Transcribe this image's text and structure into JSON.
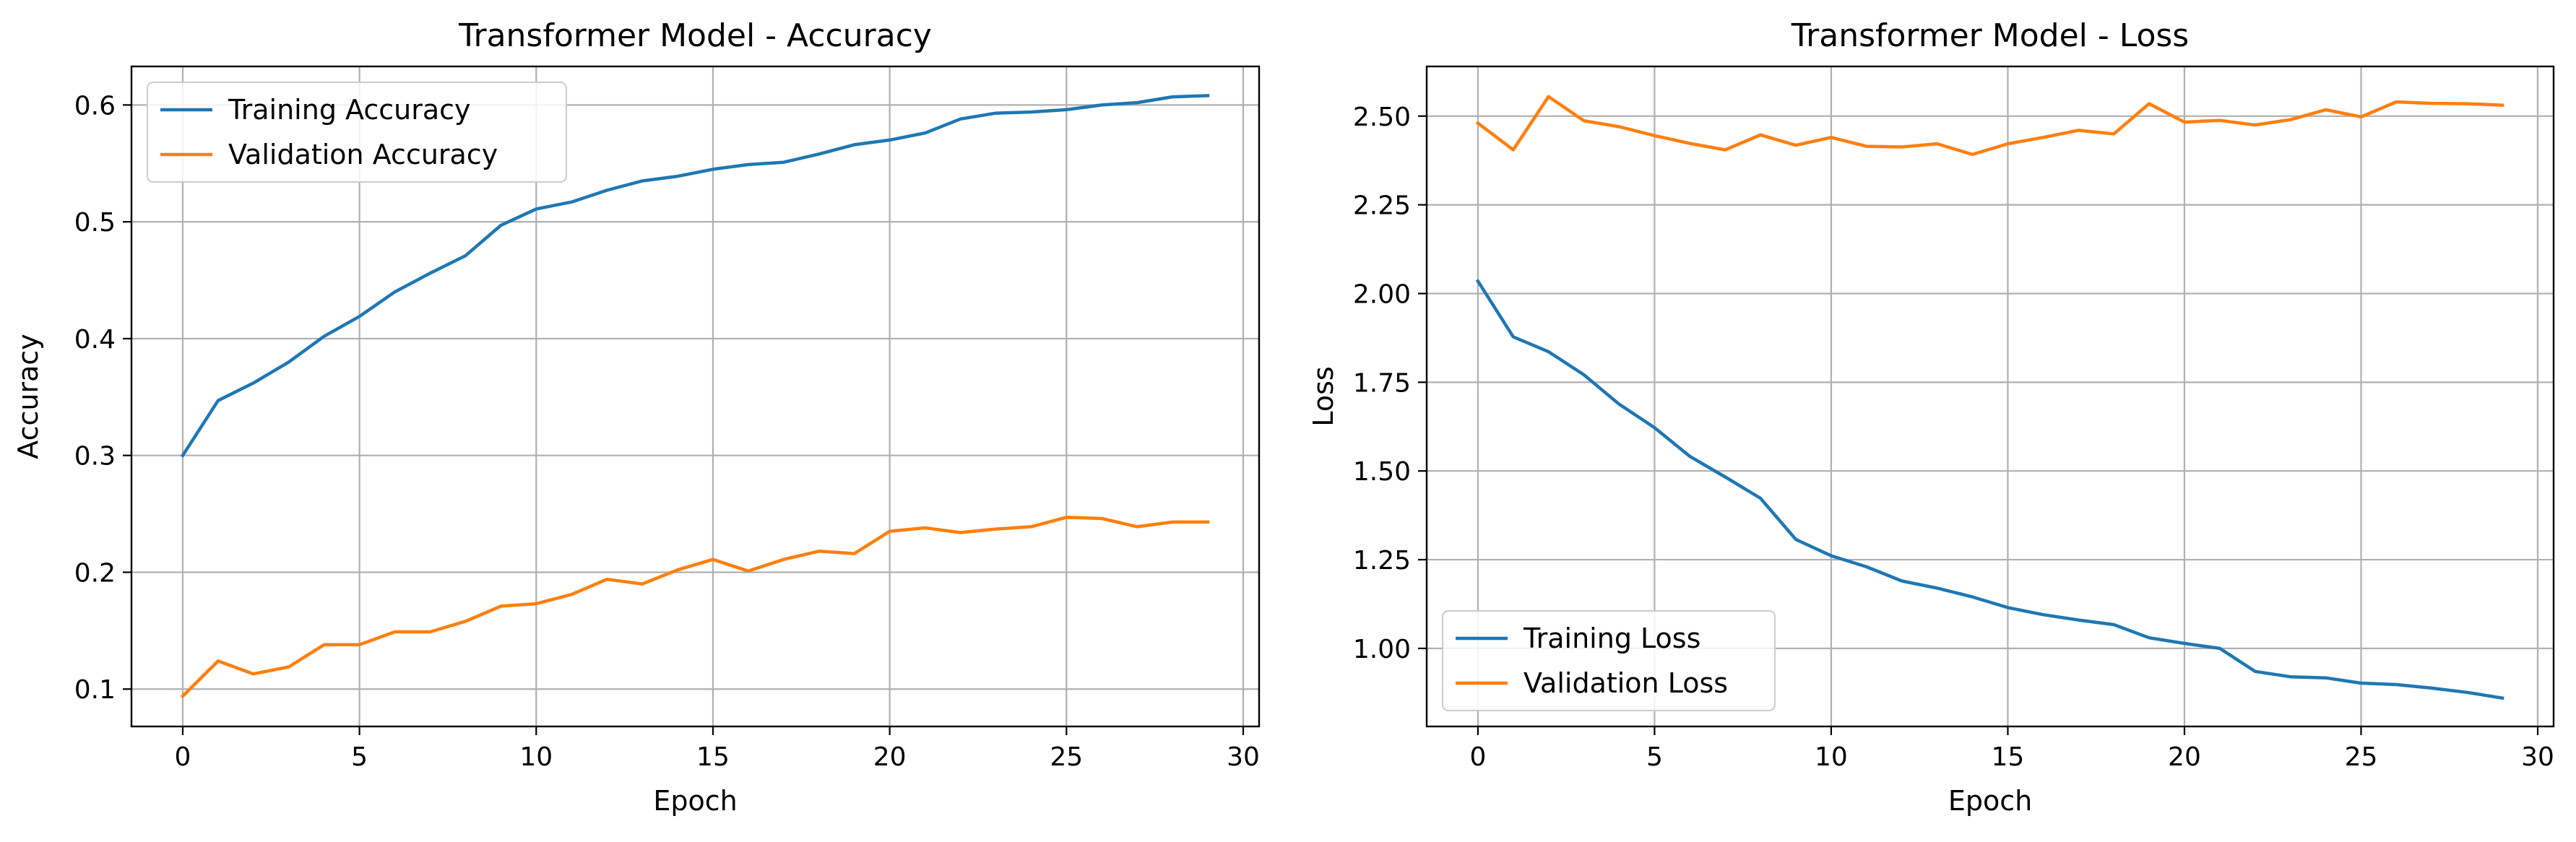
{
  "colors": {
    "training": "#1f77b4",
    "validation": "#ff7f0e",
    "grid": "#b0b0b0",
    "axis": "#000000",
    "legend_border": "#cccccc"
  },
  "chart_data": [
    {
      "type": "line",
      "title": "Transformer Model - Accuracy",
      "xlabel": "Epoch",
      "ylabel": "Accuracy",
      "xlim": [
        -1.45,
        30.45
      ],
      "ylim": [
        0.068,
        0.633
      ],
      "xticks": [
        0,
        5,
        10,
        15,
        20,
        25,
        30
      ],
      "yticks": [
        0.1,
        0.2,
        0.3,
        0.4,
        0.5,
        0.6
      ],
      "ytick_labels": [
        "0.1",
        "0.2",
        "0.3",
        "0.4",
        "0.5",
        "0.6"
      ],
      "grid": true,
      "legend_position": "upper-left",
      "x": [
        0,
        1,
        2,
        3,
        4,
        5,
        6,
        7,
        8,
        9,
        10,
        11,
        12,
        13,
        14,
        15,
        16,
        17,
        18,
        19,
        20,
        21,
        22,
        23,
        24,
        25,
        26,
        27,
        28,
        29
      ],
      "series": [
        {
          "name": "Training Accuracy",
          "color_key": "training",
          "values": [
            0.3,
            0.347,
            0.362,
            0.38,
            0.402,
            0.419,
            0.44,
            0.456,
            0.471,
            0.497,
            0.511,
            0.517,
            0.527,
            0.535,
            0.539,
            0.545,
            0.549,
            0.551,
            0.558,
            0.566,
            0.57,
            0.576,
            0.588,
            0.593,
            0.594,
            0.596,
            0.6,
            0.602,
            0.607,
            0.608
          ]
        },
        {
          "name": "Validation Accuracy",
          "color_key": "validation",
          "values": [
            0.094,
            0.124,
            0.113,
            0.119,
            0.138,
            0.138,
            0.149,
            0.149,
            0.158,
            0.171,
            0.173,
            0.181,
            0.194,
            0.19,
            0.202,
            0.211,
            0.201,
            0.211,
            0.218,
            0.216,
            0.235,
            0.238,
            0.234,
            0.237,
            0.239,
            0.247,
            0.246,
            0.239,
            0.243,
            0.243
          ]
        }
      ]
    },
    {
      "type": "line",
      "title": "Transformer Model - Loss",
      "xlabel": "Epoch",
      "ylabel": "Loss",
      "xlim": [
        -1.45,
        30.45
      ],
      "ylim": [
        0.78,
        2.64
      ],
      "xticks": [
        0,
        5,
        10,
        15,
        20,
        25,
        30
      ],
      "yticks": [
        1.0,
        1.25,
        1.5,
        1.75,
        2.0,
        2.25,
        2.5
      ],
      "ytick_labels": [
        "1.00",
        "1.25",
        "1.50",
        "1.75",
        "2.00",
        "2.25",
        "2.50"
      ],
      "grid": true,
      "legend_position": "lower-left",
      "x": [
        0,
        1,
        2,
        3,
        4,
        5,
        6,
        7,
        8,
        9,
        10,
        11,
        12,
        13,
        14,
        15,
        16,
        17,
        18,
        19,
        20,
        21,
        22,
        23,
        24,
        25,
        26,
        27,
        28,
        29
      ],
      "series": [
        {
          "name": "Training Loss",
          "color_key": "training",
          "values": [
            2.035,
            1.878,
            1.836,
            1.771,
            1.688,
            1.622,
            1.541,
            1.483,
            1.423,
            1.307,
            1.261,
            1.23,
            1.19,
            1.17,
            1.145,
            1.115,
            1.095,
            1.08,
            1.067,
            1.03,
            1.014,
            1.0,
            0.935,
            0.92,
            0.917,
            0.902,
            0.898,
            0.888,
            0.876,
            0.86
          ]
        },
        {
          "name": "Validation Loss",
          "color_key": "validation",
          "values": [
            2.48,
            2.405,
            2.555,
            2.487,
            2.47,
            2.445,
            2.423,
            2.405,
            2.447,
            2.418,
            2.44,
            2.415,
            2.413,
            2.422,
            2.392,
            2.422,
            2.44,
            2.46,
            2.45,
            2.535,
            2.483,
            2.488,
            2.475,
            2.49,
            2.518,
            2.498,
            2.54,
            2.536,
            2.535,
            2.531
          ]
        }
      ]
    }
  ]
}
